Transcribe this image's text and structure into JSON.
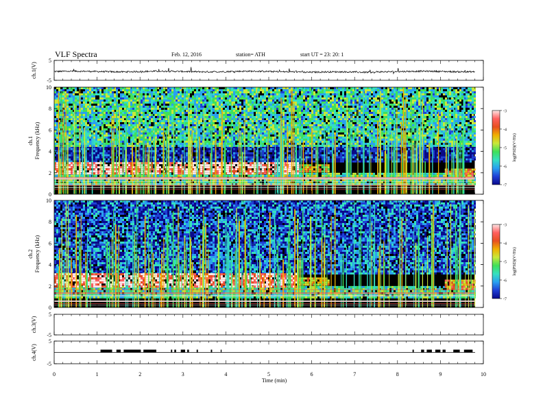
{
  "header": {
    "title": "VLF  Spectra",
    "date": "Feb. 12, 2016",
    "station": "station= ATH",
    "start": "start  UT =    23: 20: 1"
  },
  "colors": {
    "spectro_ramp": [
      "#0a0a8c",
      "#1f3fd6",
      "#2aa0f0",
      "#35e0c0",
      "#3fe05a",
      "#c8e83a",
      "#f0b000",
      "#e85020",
      "#ff6060",
      "#ffe6e6"
    ],
    "background": "#000000",
    "trace": "#000000"
  },
  "chart_data": [
    {
      "type": "line",
      "name": "ch1",
      "ylabel": "ch.1(V)",
      "ylim": [
        -5,
        5
      ],
      "yticks": [
        "5",
        "-5"
      ],
      "x_range_min": [
        0,
        9.8
      ],
      "baseline": 0.3,
      "noise_amplitude": 0.4
    },
    {
      "type": "heatmap",
      "name": "ch1-spectrogram",
      "ylabel": "ch.1\nFrequency  (kHz)",
      "ylim": [
        0,
        10
      ],
      "yticks": [
        "0",
        "2",
        "4",
        "6",
        "8",
        "10"
      ],
      "xlim": [
        0,
        10
      ],
      "data_end_min": 9.8,
      "z_label": "log(PSD)(V²/Hz)",
      "zlim": [
        -7,
        -3
      ],
      "zticks": [
        "-3",
        "-4",
        "-5",
        "-6",
        "-7"
      ],
      "bands": [
        {
          "freq": [
            2.0,
            3.0
          ],
          "x": [
            0,
            5.7
          ],
          "level": -3.3
        },
        {
          "freq": [
            2.2,
            2.8
          ],
          "x": [
            5.7,
            6.4
          ],
          "level": -4.5
        },
        {
          "freq": [
            1.6,
            2.4
          ],
          "x": [
            9.1,
            9.8
          ],
          "level": -4.2
        },
        {
          "freq": [
            1.0,
            2.0
          ],
          "x": [
            0,
            9.8
          ],
          "level": -5.3
        },
        {
          "freq": [
            4.5,
            10
          ],
          "x": [
            0,
            9.8
          ],
          "level": -5.5
        },
        {
          "freq": [
            3.0,
            4.5
          ],
          "x": [
            0,
            9.8
          ],
          "level": -6.6
        }
      ]
    },
    {
      "type": "heatmap",
      "name": "ch2-spectrogram",
      "ylabel": "ch.2\nFrequency  (kHz)",
      "ylim": [
        0,
        10
      ],
      "yticks": [
        "0",
        "2",
        "4",
        "6",
        "8",
        "10"
      ],
      "xlim": [
        0,
        10
      ],
      "data_end_min": 9.8,
      "z_label": "log(PSD)(V²/Hz)",
      "zlim": [
        -7,
        -3
      ],
      "zticks": [
        "-3",
        "-4",
        "-5",
        "-6",
        "-7"
      ],
      "bands": [
        {
          "freq": [
            2.0,
            3.2
          ],
          "x": [
            0,
            5.7
          ],
          "level": -3.3
        },
        {
          "freq": [
            2.2,
            2.8
          ],
          "x": [
            5.7,
            6.4
          ],
          "level": -4.6
        },
        {
          "freq": [
            1.8,
            2.6
          ],
          "x": [
            9.1,
            9.8
          ],
          "level": -4.2
        },
        {
          "freq": [
            1.0,
            2.0
          ],
          "x": [
            0,
            9.8
          ],
          "level": -5.4
        },
        {
          "freq": [
            3.2,
            10
          ],
          "x": [
            0,
            9.8
          ],
          "level": -6.3
        }
      ]
    },
    {
      "type": "line",
      "name": "ch3",
      "ylabel": "ch.3(V)",
      "ylim": [
        -5,
        5
      ],
      "yticks": [
        "5",
        "-5"
      ]
    },
    {
      "type": "line",
      "name": "ch4",
      "ylabel": "ch.4(V)",
      "ylim": [
        -5,
        5
      ],
      "yticks": [
        "5",
        "-5"
      ],
      "baseline": 0,
      "pulse_level": 1.2,
      "pulse_intervals_min": [
        [
          1.08,
          1.35
        ],
        [
          1.45,
          1.55
        ],
        [
          1.62,
          2.02
        ],
        [
          2.08,
          2.38
        ],
        [
          2.72,
          2.75
        ],
        [
          2.8,
          2.84
        ],
        [
          2.95,
          3.05
        ],
        [
          3.1,
          3.14
        ],
        [
          3.32,
          3.35
        ],
        [
          3.65,
          3.68
        ],
        [
          3.88,
          3.9
        ],
        [
          8.35,
          8.38
        ],
        [
          8.55,
          8.62
        ],
        [
          8.68,
          8.8
        ],
        [
          8.88,
          9.0
        ],
        [
          9.05,
          9.12
        ],
        [
          9.3,
          9.45
        ],
        [
          9.55,
          9.75
        ]
      ]
    }
  ],
  "xaxis": {
    "label": "Time  (min)",
    "xlim": [
      0,
      10
    ],
    "ticks": [
      "0",
      "1",
      "2",
      "3",
      "4",
      "5",
      "6",
      "7",
      "8",
      "9",
      "10"
    ]
  }
}
